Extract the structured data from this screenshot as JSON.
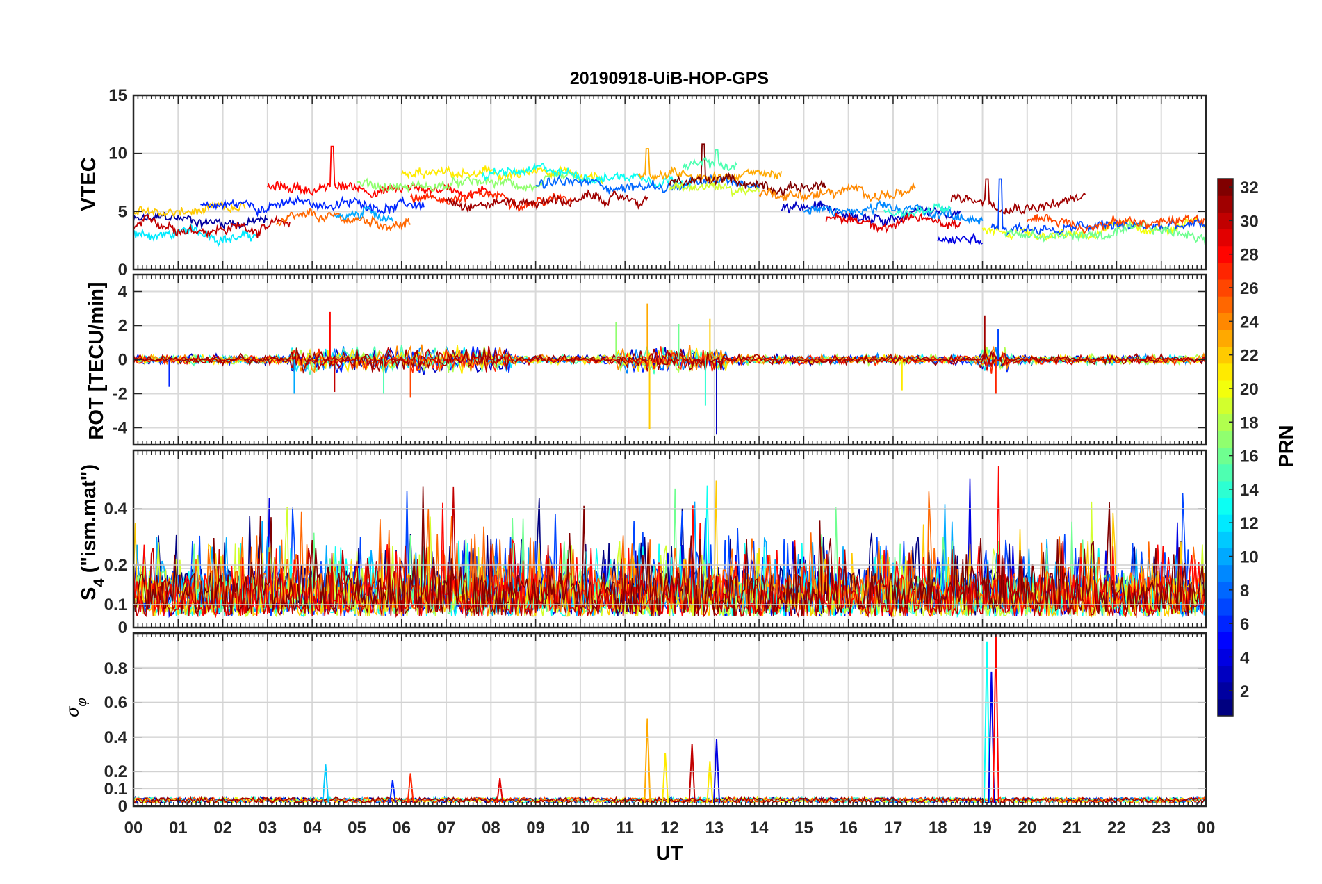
{
  "chart_data": {
    "type": "line",
    "title": "20190918-UiB-HOP-GPS",
    "xlabel": "UT",
    "x_range_hours": [
      0,
      24
    ],
    "x_tick_labels": [
      "00",
      "01",
      "02",
      "03",
      "04",
      "05",
      "06",
      "07",
      "08",
      "09",
      "10",
      "11",
      "12",
      "13",
      "14",
      "15",
      "16",
      "17",
      "18",
      "19",
      "20",
      "21",
      "22",
      "23",
      "00"
    ],
    "colorbar": {
      "label": "PRN",
      "colormap": "jet",
      "range": [
        1,
        32
      ],
      "tick_labels": [
        "2",
        "4",
        "6",
        "8",
        "10",
        "12",
        "14",
        "16",
        "18",
        "20",
        "22",
        "24",
        "26",
        "28",
        "30",
        "32"
      ],
      "colors": [
        "#00008f",
        "#0000ff",
        "#007fff",
        "#00ffff",
        "#7fff7f",
        "#ffff00",
        "#ff7f00",
        "#ff0000",
        "#7f0000"
      ]
    },
    "panels": [
      {
        "id": "vtec",
        "ylabel": "VTEC",
        "ylim": [
          0,
          15
        ],
        "y_ticks": [
          0,
          5,
          10,
          15
        ],
        "y_tick_labels": [
          "0",
          "5",
          "10",
          "15"
        ],
        "kind": "vtec",
        "series": [
          {
            "prn": 2,
            "start": 0.0,
            "end": 3.0,
            "base": 4.2
          },
          {
            "prn": 12,
            "start": 0.0,
            "end": 2.8,
            "base": 3.0
          },
          {
            "prn": 22,
            "start": 0.0,
            "end": 2.5,
            "base": 4.8
          },
          {
            "prn": 30,
            "start": 0.0,
            "end": 3.5,
            "base": 3.8
          },
          {
            "prn": 6,
            "start": 1.5,
            "end": 6.5,
            "base": 5.6
          },
          {
            "prn": 25,
            "start": 3.2,
            "end": 6.2,
            "base": 4.0
          },
          {
            "prn": 28,
            "start": 3.0,
            "end": 8.0,
            "base": 7.0,
            "spike": [
              4.45,
              10.6
            ]
          },
          {
            "prn": 10,
            "start": 4.5,
            "end": 5.8,
            "base": 4.8
          },
          {
            "prn": 17,
            "start": 5.0,
            "end": 10.0,
            "base": 7.2
          },
          {
            "prn": 21,
            "start": 6.0,
            "end": 10.5,
            "base": 8.0
          },
          {
            "prn": 27,
            "start": 6.2,
            "end": 9.8,
            "base": 6.2
          },
          {
            "prn": 31,
            "start": 7.0,
            "end": 11.5,
            "base": 6.0
          },
          {
            "prn": 13,
            "start": 7.8,
            "end": 12.5,
            "base": 8.2
          },
          {
            "prn": 8,
            "start": 9.0,
            "end": 14.0,
            "base": 7.2
          },
          {
            "prn": 23,
            "start": 11.3,
            "end": 14.5,
            "base": 8.4,
            "spike": [
              11.5,
              10.4
            ]
          },
          {
            "prn": 32,
            "start": 12.0,
            "end": 15.5,
            "base": 7.4,
            "spike": [
              12.75,
              10.8
            ]
          },
          {
            "prn": 15,
            "start": 12.3,
            "end": 13.5,
            "base": 8.8,
            "spike": [
              13.05,
              10.3
            ]
          },
          {
            "prn": 19,
            "start": 12.0,
            "end": 14.0,
            "base": 7.0
          },
          {
            "prn": 24,
            "start": 14.0,
            "end": 17.5,
            "base": 6.6
          },
          {
            "prn": 3,
            "start": 14.5,
            "end": 18.5,
            "base": 5.2
          },
          {
            "prn": 9,
            "start": 15.0,
            "end": 19.0,
            "base": 4.8
          },
          {
            "prn": 29,
            "start": 15.5,
            "end": 18.5,
            "base": 4.2
          },
          {
            "prn": 14,
            "start": 16.8,
            "end": 18.3,
            "base": 5.0
          },
          {
            "prn": 4,
            "start": 18.0,
            "end": 19.0,
            "base": 2.6
          },
          {
            "prn": 31,
            "start": 18.3,
            "end": 21.3,
            "base": 6.0,
            "spike": [
              19.1,
              7.8
            ]
          },
          {
            "prn": 20,
            "start": 19.0,
            "end": 24.0,
            "base": 3.4
          },
          {
            "prn": 7,
            "start": 19.2,
            "end": 24.0,
            "base": 3.6,
            "spike": [
              19.4,
              7.8
            ]
          },
          {
            "prn": 16,
            "start": 19.5,
            "end": 24.0,
            "base": 3.0
          },
          {
            "prn": 26,
            "start": 20.0,
            "end": 24.0,
            "base": 4.2
          }
        ]
      },
      {
        "id": "rot",
        "ylabel": "ROT [TECU/min]",
        "ylim": [
          -5,
          5
        ],
        "y_ticks": [
          -4,
          -2,
          0,
          2,
          4
        ],
        "y_tick_labels": [
          "-4",
          "-2",
          "0",
          "2",
          "4"
        ],
        "kind": "rot",
        "spikes": [
          {
            "t": 0.8,
            "v": -1.6,
            "prn": 6
          },
          {
            "t": 3.6,
            "v": -2.0,
            "prn": 10
          },
          {
            "t": 4.4,
            "v": 2.8,
            "prn": 28
          },
          {
            "t": 4.5,
            "v": -1.9,
            "prn": 30
          },
          {
            "t": 5.6,
            "v": -2.0,
            "prn": 15
          },
          {
            "t": 6.2,
            "v": -2.2,
            "prn": 26
          },
          {
            "t": 10.8,
            "v": 2.2,
            "prn": 17
          },
          {
            "t": 11.5,
            "v": 3.3,
            "prn": 23
          },
          {
            "t": 11.55,
            "v": -4.1,
            "prn": 22
          },
          {
            "t": 12.2,
            "v": 2.1,
            "prn": 16
          },
          {
            "t": 12.8,
            "v": -2.7,
            "prn": 14
          },
          {
            "t": 12.9,
            "v": 2.4,
            "prn": 22
          },
          {
            "t": 13.05,
            "v": -4.4,
            "prn": 3
          },
          {
            "t": 17.2,
            "v": -1.8,
            "prn": 21
          },
          {
            "t": 19.05,
            "v": 2.6,
            "prn": 31
          },
          {
            "t": 19.3,
            "v": -2.0,
            "prn": 27
          },
          {
            "t": 19.35,
            "v": 1.8,
            "prn": 7
          }
        ]
      },
      {
        "id": "s4",
        "ylabel": "S4 (\"ism.mat\")",
        "ylim": [
          0,
          0.6
        ],
        "y_ticks": [
          0,
          0.1,
          0.2,
          0.4
        ],
        "y_tick_labels": [
          "0",
          "0.1",
          "0.2",
          "0.4"
        ],
        "kind": "s4"
      },
      {
        "id": "sigma",
        "ylabel": "σφ",
        "ylim": [
          0,
          1.0
        ],
        "y_ticks": [
          0,
          0.1,
          0.2,
          0.4,
          0.6,
          0.8
        ],
        "y_tick_labels": [
          "0",
          "0.1",
          "0.2",
          "0.4",
          "0.6",
          "0.8"
        ],
        "kind": "sigma",
        "spikes": [
          {
            "t": 4.3,
            "v": 0.24,
            "prn": 11
          },
          {
            "t": 5.8,
            "v": 0.15,
            "prn": 6
          },
          {
            "t": 6.2,
            "v": 0.19,
            "prn": 27
          },
          {
            "t": 8.2,
            "v": 0.16,
            "prn": 29
          },
          {
            "t": 11.5,
            "v": 0.51,
            "prn": 23
          },
          {
            "t": 11.9,
            "v": 0.31,
            "prn": 21
          },
          {
            "t": 12.5,
            "v": 0.36,
            "prn": 30
          },
          {
            "t": 12.9,
            "v": 0.26,
            "prn": 21
          },
          {
            "t": 13.05,
            "v": 0.39,
            "prn": 4
          },
          {
            "t": 19.1,
            "v": 0.95,
            "prn": 13
          },
          {
            "t": 19.2,
            "v": 0.78,
            "prn": 4
          },
          {
            "t": 19.3,
            "v": 1.0,
            "prn": 28
          }
        ]
      }
    ]
  }
}
